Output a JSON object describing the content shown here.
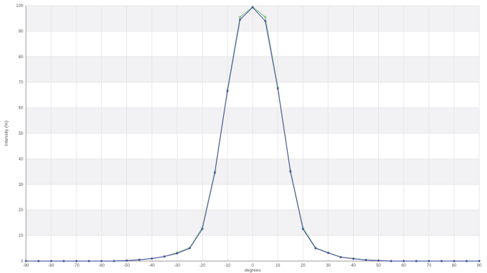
{
  "chart_data": {
    "type": "line",
    "xlabel": "degrees",
    "ylabel": "Intensity (%)",
    "xlim": [
      -90,
      90
    ],
    "ylim": [
      0,
      100
    ],
    "x_ticks": [
      -90,
      -80,
      -70,
      -60,
      -50,
      -40,
      -30,
      -20,
      -10,
      0,
      10,
      20,
      30,
      40,
      50,
      60,
      70,
      80,
      90
    ],
    "y_ticks": [
      0,
      10,
      20,
      30,
      40,
      50,
      60,
      70,
      80,
      90,
      100
    ],
    "grid": true,
    "x": [
      -90,
      -85,
      -80,
      -75,
      -70,
      -65,
      -60,
      -55,
      -50,
      -45,
      -40,
      -35,
      -30,
      -25,
      -20,
      -15,
      -10,
      -5,
      0,
      5,
      10,
      15,
      20,
      25,
      30,
      35,
      40,
      45,
      50,
      55,
      60,
      65,
      70,
      75,
      80,
      85,
      90
    ],
    "series": [
      {
        "color": "#7ec87e",
        "values": [
          0,
          0,
          0,
          0,
          0,
          0,
          0,
          0,
          0.2,
          0.5,
          1.0,
          1.8,
          3.3,
          5.2,
          13.0,
          35.0,
          67.0,
          95.5,
          99.5,
          95.5,
          68.0,
          35.5,
          13.0,
          5.2,
          3.3,
          1.6,
          1.0,
          0.5,
          0.2,
          0,
          0,
          0,
          0,
          0,
          0,
          0,
          0
        ]
      },
      {
        "color": "#4a4aa8",
        "values": [
          0,
          0,
          0,
          0,
          0,
          0,
          0,
          0,
          0.2,
          0.5,
          1.0,
          1.8,
          3.0,
          5.0,
          12.5,
          34.5,
          66.5,
          94.5,
          99.3,
          94.0,
          67.5,
          35.0,
          12.5,
          5.0,
          3.2,
          1.5,
          0.9,
          0.4,
          0.2,
          0,
          0,
          0,
          0,
          0,
          0,
          0,
          0
        ]
      }
    ]
  }
}
